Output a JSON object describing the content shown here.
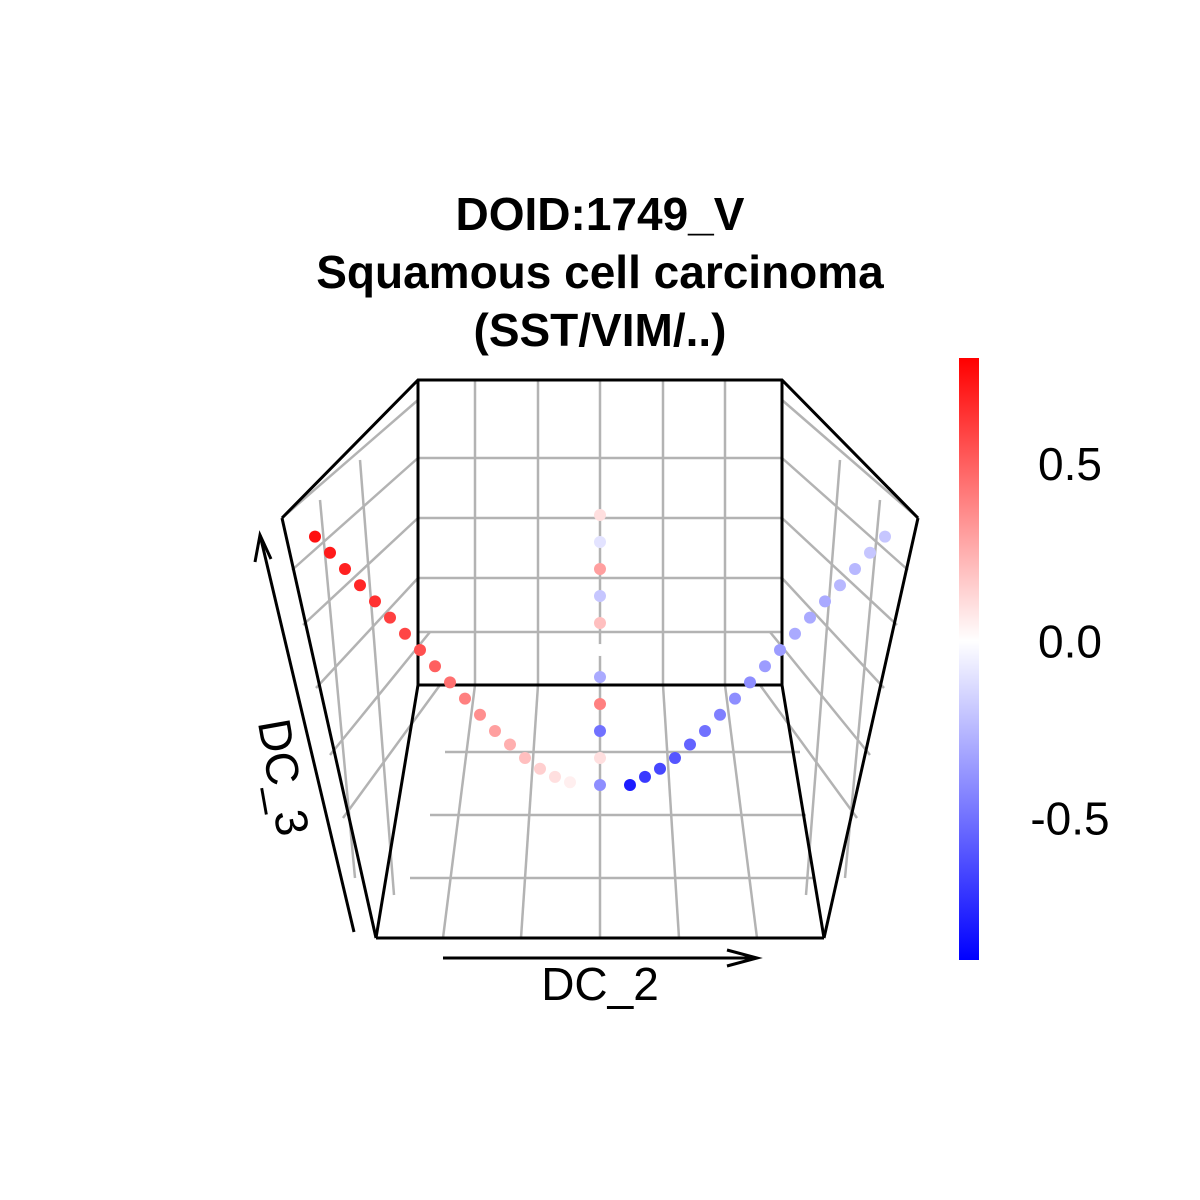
{
  "chart_data": {
    "type": "scatter",
    "subtype": "3d-scatter",
    "title_lines": [
      "DOID:1749_V",
      "Squamous cell carcinoma",
      "(SST/VIM/..)"
    ],
    "xlabel": "DC_2",
    "zlabel": "DC_3",
    "grid": true,
    "colorbar": {
      "ticks": [
        0.5,
        0.0,
        -0.5
      ],
      "tick_labels": [
        "0.5",
        "0.0",
        "-0.5"
      ],
      "range": [
        -0.9,
        0.8
      ],
      "low_color": "#0000ff",
      "mid_color": "#ffffff",
      "high_color": "#ff0000",
      "placement": "right"
    },
    "series": [
      {
        "branch": "left",
        "color_trend": "red",
        "points": [
          {
            "x": -0.95,
            "z": 0.92,
            "v": 0.75
          },
          {
            "x": -0.9,
            "z": 0.86,
            "v": 0.72
          },
          {
            "x": -0.85,
            "z": 0.8,
            "v": 0.7
          },
          {
            "x": -0.8,
            "z": 0.74,
            "v": 0.68
          },
          {
            "x": -0.75,
            "z": 0.68,
            "v": 0.65
          },
          {
            "x": -0.7,
            "z": 0.62,
            "v": 0.6
          },
          {
            "x": -0.65,
            "z": 0.56,
            "v": 0.58
          },
          {
            "x": -0.6,
            "z": 0.5,
            "v": 0.55
          },
          {
            "x": -0.55,
            "z": 0.44,
            "v": 0.5
          },
          {
            "x": -0.5,
            "z": 0.38,
            "v": 0.45
          },
          {
            "x": -0.45,
            "z": 0.32,
            "v": 0.4
          },
          {
            "x": -0.4,
            "z": 0.26,
            "v": 0.35
          },
          {
            "x": -0.35,
            "z": 0.2,
            "v": 0.3
          },
          {
            "x": -0.3,
            "z": 0.15,
            "v": 0.25
          },
          {
            "x": -0.25,
            "z": 0.1,
            "v": 0.2
          },
          {
            "x": -0.2,
            "z": 0.06,
            "v": 0.15
          },
          {
            "x": -0.15,
            "z": 0.03,
            "v": 0.1
          },
          {
            "x": -0.1,
            "z": 0.01,
            "v": 0.05
          }
        ]
      },
      {
        "branch": "center",
        "color_trend": "mixed",
        "points": [
          {
            "x": 0.0,
            "z": 1.0,
            "v": 0.1
          },
          {
            "x": 0.0,
            "z": 0.9,
            "v": -0.1
          },
          {
            "x": 0.0,
            "z": 0.8,
            "v": 0.3
          },
          {
            "x": 0.0,
            "z": 0.7,
            "v": -0.2
          },
          {
            "x": 0.0,
            "z": 0.6,
            "v": 0.2
          },
          {
            "x": 0.0,
            "z": 0.5,
            "v": 0.0
          },
          {
            "x": 0.0,
            "z": 0.4,
            "v": -0.3
          },
          {
            "x": 0.0,
            "z": 0.3,
            "v": 0.4
          },
          {
            "x": 0.0,
            "z": 0.2,
            "v": -0.5
          },
          {
            "x": 0.0,
            "z": 0.1,
            "v": 0.1
          },
          {
            "x": 0.0,
            "z": 0.0,
            "v": -0.4
          }
        ]
      },
      {
        "branch": "right",
        "color_trend": "blue",
        "points": [
          {
            "x": 0.1,
            "z": 0.0,
            "v": -0.8
          },
          {
            "x": 0.15,
            "z": 0.03,
            "v": -0.7
          },
          {
            "x": 0.2,
            "z": 0.06,
            "v": -0.65
          },
          {
            "x": 0.25,
            "z": 0.1,
            "v": -0.6
          },
          {
            "x": 0.3,
            "z": 0.15,
            "v": -0.55
          },
          {
            "x": 0.35,
            "z": 0.2,
            "v": -0.5
          },
          {
            "x": 0.4,
            "z": 0.26,
            "v": -0.45
          },
          {
            "x": 0.45,
            "z": 0.32,
            "v": -0.4
          },
          {
            "x": 0.5,
            "z": 0.38,
            "v": -0.4
          },
          {
            "x": 0.55,
            "z": 0.44,
            "v": -0.35
          },
          {
            "x": 0.6,
            "z": 0.5,
            "v": -0.35
          },
          {
            "x": 0.65,
            "z": 0.56,
            "v": -0.3
          },
          {
            "x": 0.7,
            "z": 0.62,
            "v": -0.3
          },
          {
            "x": 0.75,
            "z": 0.68,
            "v": -0.3
          },
          {
            "x": 0.8,
            "z": 0.74,
            "v": -0.25
          },
          {
            "x": 0.85,
            "z": 0.8,
            "v": -0.25
          },
          {
            "x": 0.9,
            "z": 0.86,
            "v": -0.2
          },
          {
            "x": 0.95,
            "z": 0.92,
            "v": -0.2
          }
        ]
      }
    ]
  }
}
